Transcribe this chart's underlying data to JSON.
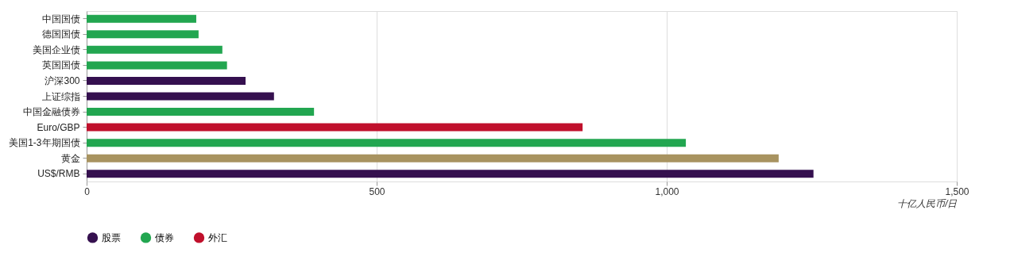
{
  "chart_data": {
    "type": "bar",
    "orientation": "horizontal",
    "categories": [
      "中国国债",
      "德国国债",
      "美国企业债",
      "英国国债",
      "沪深300",
      "上证综指",
      "中国金融债券",
      "Euro/GBP",
      "美国1-3年期国债",
      "黄金",
      "US$/RMB"
    ],
    "series": [
      {
        "name": "股票",
        "color": "#35104f",
        "values": [
          null,
          null,
          null,
          null,
          274,
          323,
          null,
          null,
          null,
          null,
          1253
        ]
      },
      {
        "name": "债券",
        "color": "#22a650",
        "values": [
          189,
          193,
          234,
          242,
          null,
          null,
          392,
          null,
          1033,
          null,
          null
        ]
      },
      {
        "name": "外汇",
        "color": "#c0102c",
        "values": [
          null,
          null,
          null,
          null,
          null,
          null,
          null,
          855,
          null,
          null,
          null
        ]
      },
      {
        "color": "#a89360",
        "values": [
          null,
          null,
          null,
          null,
          null,
          null,
          null,
          null,
          null,
          1193,
          null
        ]
      }
    ],
    "xlabel": "十亿人民币/日",
    "xlim": [
      0,
      1500
    ],
    "xticks": [
      0,
      500,
      {
        "value": 1000,
        "label": "1,000"
      },
      {
        "value": 1500,
        "label": "1,500"
      }
    ],
    "grid": "x",
    "legend": "bottom"
  }
}
